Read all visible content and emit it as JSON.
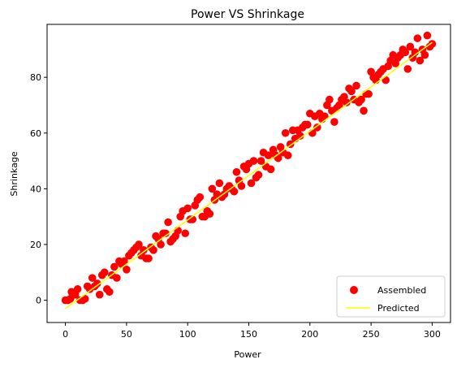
{
  "chart_data": {
    "type": "scatter",
    "title": "Power VS Shrinkage",
    "xlabel": "Power",
    "ylabel": "Shrinkage",
    "xlim": [
      -15,
      315
    ],
    "ylim": [
      -8,
      99
    ],
    "xticks": [
      0,
      50,
      100,
      150,
      200,
      250,
      300
    ],
    "yticks": [
      0,
      20,
      40,
      60,
      80
    ],
    "grid": false,
    "legend": "lower-right",
    "series": [
      {
        "name": "Assembled",
        "kind": "scatter",
        "color": "#ff0000",
        "points": [
          [
            0,
            0
          ],
          [
            2,
            0
          ],
          [
            4,
            0.5
          ],
          [
            5,
            3
          ],
          [
            8,
            2
          ],
          [
            10,
            4
          ],
          [
            12,
            0
          ],
          [
            14,
            0
          ],
          [
            16,
            0.5
          ],
          [
            18,
            5
          ],
          [
            20,
            4
          ],
          [
            22,
            8
          ],
          [
            24,
            5
          ],
          [
            26,
            6
          ],
          [
            28,
            2
          ],
          [
            30,
            9
          ],
          [
            32,
            10
          ],
          [
            34,
            4
          ],
          [
            36,
            3
          ],
          [
            38,
            9
          ],
          [
            40,
            12
          ],
          [
            42,
            8
          ],
          [
            44,
            14
          ],
          [
            46,
            13
          ],
          [
            48,
            14
          ],
          [
            50,
            11
          ],
          [
            52,
            16
          ],
          [
            54,
            17
          ],
          [
            56,
            18
          ],
          [
            58,
            19
          ],
          [
            60,
            20
          ],
          [
            62,
            16
          ],
          [
            64,
            18
          ],
          [
            66,
            15
          ],
          [
            68,
            15
          ],
          [
            70,
            19
          ],
          [
            72,
            18
          ],
          [
            74,
            23
          ],
          [
            76,
            22
          ],
          [
            78,
            20
          ],
          [
            80,
            24
          ],
          [
            82,
            24
          ],
          [
            84,
            28
          ],
          [
            86,
            21
          ],
          [
            88,
            22
          ],
          [
            90,
            23
          ],
          [
            92,
            25
          ],
          [
            94,
            30
          ],
          [
            96,
            32
          ],
          [
            98,
            24
          ],
          [
            100,
            33
          ],
          [
            102,
            29
          ],
          [
            104,
            29
          ],
          [
            106,
            34
          ],
          [
            108,
            36
          ],
          [
            110,
            37
          ],
          [
            112,
            30
          ],
          [
            114,
            30
          ],
          [
            116,
            32
          ],
          [
            118,
            31
          ],
          [
            120,
            40
          ],
          [
            122,
            36
          ],
          [
            124,
            38
          ],
          [
            126,
            42
          ],
          [
            128,
            37
          ],
          [
            130,
            38
          ],
          [
            132,
            40
          ],
          [
            134,
            41
          ],
          [
            136,
            40
          ],
          [
            138,
            39
          ],
          [
            140,
            46
          ],
          [
            142,
            43
          ],
          [
            144,
            41
          ],
          [
            146,
            48
          ],
          [
            148,
            47
          ],
          [
            150,
            49
          ],
          [
            152,
            42
          ],
          [
            154,
            50
          ],
          [
            156,
            44
          ],
          [
            158,
            45
          ],
          [
            160,
            50
          ],
          [
            162,
            53
          ],
          [
            164,
            48
          ],
          [
            166,
            52
          ],
          [
            168,
            47
          ],
          [
            170,
            54
          ],
          [
            172,
            52
          ],
          [
            174,
            51
          ],
          [
            176,
            55
          ],
          [
            178,
            53
          ],
          [
            180,
            60
          ],
          [
            182,
            52
          ],
          [
            184,
            56
          ],
          [
            186,
            61
          ],
          [
            188,
            58
          ],
          [
            190,
            61
          ],
          [
            192,
            59
          ],
          [
            194,
            62
          ],
          [
            196,
            63
          ],
          [
            198,
            63
          ],
          [
            200,
            67
          ],
          [
            202,
            60
          ],
          [
            204,
            66
          ],
          [
            206,
            62
          ],
          [
            208,
            67
          ],
          [
            210,
            65
          ],
          [
            212,
            66
          ],
          [
            214,
            70
          ],
          [
            216,
            72
          ],
          [
            218,
            68
          ],
          [
            220,
            64
          ],
          [
            222,
            69
          ],
          [
            224,
            70
          ],
          [
            226,
            72
          ],
          [
            228,
            73
          ],
          [
            230,
            71
          ],
          [
            232,
            76
          ],
          [
            234,
            75
          ],
          [
            236,
            72
          ],
          [
            238,
            77
          ],
          [
            240,
            71
          ],
          [
            242,
            72
          ],
          [
            244,
            68
          ],
          [
            246,
            74
          ],
          [
            248,
            74
          ],
          [
            250,
            82
          ],
          [
            252,
            80
          ],
          [
            254,
            79
          ],
          [
            256,
            81
          ],
          [
            258,
            82
          ],
          [
            260,
            83
          ],
          [
            262,
            79
          ],
          [
            264,
            84
          ],
          [
            266,
            86
          ],
          [
            268,
            88
          ],
          [
            270,
            85
          ],
          [
            272,
            87
          ],
          [
            274,
            88
          ],
          [
            276,
            90
          ],
          [
            278,
            89
          ],
          [
            280,
            83
          ],
          [
            282,
            91
          ],
          [
            284,
            87
          ],
          [
            286,
            89
          ],
          [
            288,
            94
          ],
          [
            290,
            86
          ],
          [
            292,
            90
          ],
          [
            294,
            88
          ],
          [
            296,
            95
          ],
          [
            298,
            91
          ],
          [
            300,
            92
          ]
        ]
      },
      {
        "name": "Predicted",
        "kind": "line",
        "color": "#ffff00",
        "x": [
          0,
          300
        ],
        "y": [
          -3,
          92.5
        ]
      }
    ]
  }
}
